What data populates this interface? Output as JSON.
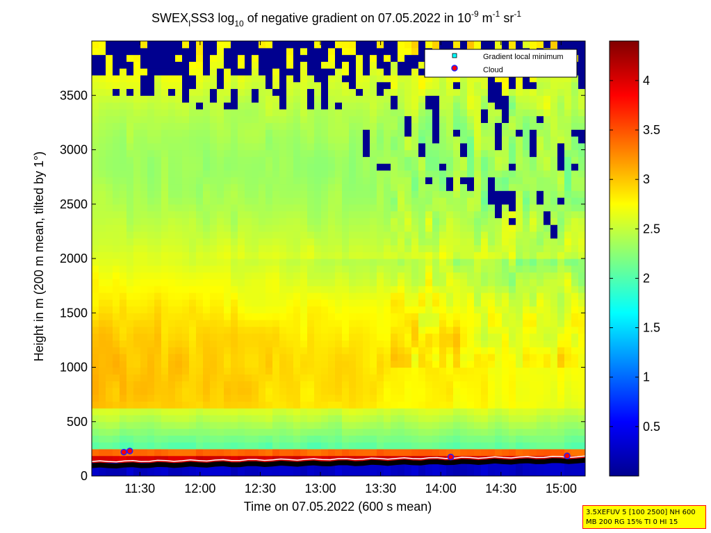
{
  "chart_data": {
    "type": "heatmap",
    "title": {
      "part1": "SWEX",
      "sub1": "I",
      "part2": "SS3 log",
      "sub2": "10",
      "part3": " of negative gradient on 07.05.2022 in 10",
      "sup1": "-9",
      "part4": " m",
      "sup2": "-1",
      "part5": " sr",
      "sup3": "-1"
    },
    "xlabel": "Time on 07.05.2022 (600 s mean)",
    "ylabel": "Height in m (200 m mean, tilted by 1°)",
    "x_ticks": [
      "11:30",
      "12:00",
      "12:30",
      "13:00",
      "13:30",
      "14:00",
      "14:30",
      "15:00"
    ],
    "y_ticks": [
      "0",
      "500",
      "1000",
      "1500",
      "2000",
      "2500",
      "3000",
      "3500"
    ],
    "y_tick_values": [
      0,
      500,
      1000,
      1500,
      2000,
      2500,
      3000,
      3500
    ],
    "x_range_hours": [
      11.1,
      15.2
    ],
    "y_range_m": [
      0,
      4000
    ],
    "colorbar": {
      "ticks": [
        "0.5",
        "1",
        "1.5",
        "2",
        "2.5",
        "3",
        "3.5",
        "4"
      ],
      "tick_values": [
        0.5,
        1,
        1.5,
        2,
        2.5,
        3,
        3.5,
        4
      ],
      "range": [
        0,
        4.4
      ],
      "colormap": "jet"
    },
    "legend": {
      "position": "top-right",
      "entries": [
        {
          "label": "Gradient local minimum",
          "marker": "cyan-square"
        },
        {
          "label": "Cloud",
          "marker": "red-dot-blue-edge"
        }
      ]
    },
    "cloud_points": [
      {
        "time": "11:22",
        "height_m": 220
      },
      {
        "time": "11:25",
        "height_m": 230
      },
      {
        "time": "14:05",
        "height_m": 175
      },
      {
        "time": "15:03",
        "height_m": 185
      }
    ]
  },
  "info_box": {
    "line1": "3.5XEFUV 5 [100 2500] NH 600",
    "line2": "MB 200 RG 15% TI 0 HI 15"
  },
  "colors": {
    "background": "#ffffff",
    "info_box_bg": "#ffff00",
    "info_box_border": "#ff0000",
    "gap_color": "#00008f"
  }
}
